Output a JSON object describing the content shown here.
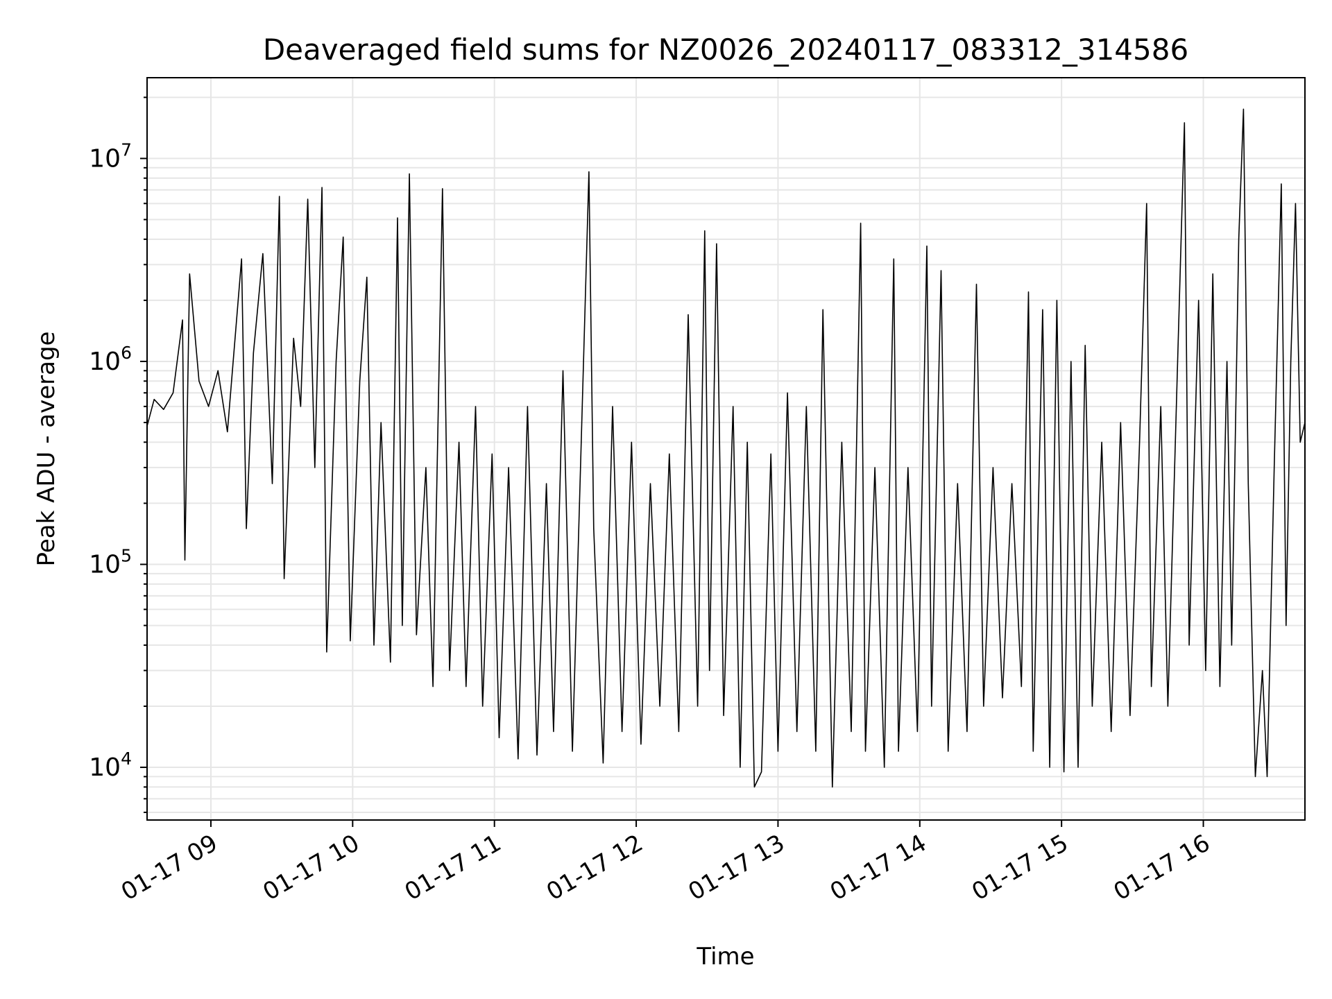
{
  "chart_data": {
    "type": "line",
    "title": "Deaveraged field sums for NZ0026_20240117_083312_314586",
    "xlabel": "Time",
    "ylabel": "Peak ADU - average",
    "yscale": "log",
    "ylim": [
      5500,
      25000000
    ],
    "xlim": [
      "2024-01-17 08:33",
      "2024-01-17 16:43"
    ],
    "grid": true,
    "line_color": "#000000",
    "grid_color": "#e6e6e6",
    "x_ticks": [
      {
        "value": "2024-01-17 09:00",
        "label": "01-17 09"
      },
      {
        "value": "2024-01-17 10:00",
        "label": "01-17 10"
      },
      {
        "value": "2024-01-17 11:00",
        "label": "01-17 11"
      },
      {
        "value": "2024-01-17 12:00",
        "label": "01-17 12"
      },
      {
        "value": "2024-01-17 13:00",
        "label": "01-17 13"
      },
      {
        "value": "2024-01-17 14:00",
        "label": "01-17 14"
      },
      {
        "value": "2024-01-17 15:00",
        "label": "01-17 15"
      },
      {
        "value": "2024-01-17 16:00",
        "label": "01-17 16"
      }
    ],
    "y_ticks": [
      {
        "value": 10000,
        "base": "10",
        "exp": "4"
      },
      {
        "value": 100000,
        "base": "10",
        "exp": "5"
      },
      {
        "value": 1000000,
        "base": "10",
        "exp": "6"
      },
      {
        "value": 10000000,
        "base": "10",
        "exp": "7"
      }
    ],
    "series": [
      {
        "points": [
          [
            "2024-01-17 08:33",
            480000
          ],
          [
            "2024-01-17 08:36",
            650000
          ],
          [
            "2024-01-17 08:40",
            580000
          ],
          [
            "2024-01-17 08:44",
            700000
          ],
          [
            "2024-01-17 08:48",
            1600000
          ],
          [
            "2024-01-17 08:49",
            105000
          ],
          [
            "2024-01-17 08:51",
            2700000
          ],
          [
            "2024-01-17 08:55",
            800000
          ],
          [
            "2024-01-17 08:59",
            600000
          ],
          [
            "2024-01-17 09:03",
            900000
          ],
          [
            "2024-01-17 09:07",
            450000
          ],
          [
            "2024-01-17 09:10",
            1200000
          ],
          [
            "2024-01-17 09:13",
            3200000
          ],
          [
            "2024-01-17 09:15",
            150000
          ],
          [
            "2024-01-17 09:18",
            1100000
          ],
          [
            "2024-01-17 09:22",
            3400000
          ],
          [
            "2024-01-17 09:26",
            250000
          ],
          [
            "2024-01-17 09:29",
            6500000
          ],
          [
            "2024-01-17 09:31",
            85000
          ],
          [
            "2024-01-17 09:35",
            1300000
          ],
          [
            "2024-01-17 09:38",
            600000
          ],
          [
            "2024-01-17 09:41",
            6300000
          ],
          [
            "2024-01-17 09:44",
            300000
          ],
          [
            "2024-01-17 09:47",
            7200000
          ],
          [
            "2024-01-17 09:49",
            37000
          ],
          [
            "2024-01-17 09:53",
            1000000
          ],
          [
            "2024-01-17 09:56",
            4100000
          ],
          [
            "2024-01-17 09:59",
            42000
          ],
          [
            "2024-01-17 10:03",
            800000
          ],
          [
            "2024-01-17 10:06",
            2600000
          ],
          [
            "2024-01-17 10:09",
            40000
          ],
          [
            "2024-01-17 10:12",
            500000
          ],
          [
            "2024-01-17 10:16",
            33000
          ],
          [
            "2024-01-17 10:19",
            5100000
          ],
          [
            "2024-01-17 10:21",
            50000
          ],
          [
            "2024-01-17 10:24",
            8400000
          ],
          [
            "2024-01-17 10:27",
            45000
          ],
          [
            "2024-01-17 10:31",
            300000
          ],
          [
            "2024-01-17 10:34",
            25000
          ],
          [
            "2024-01-17 10:38",
            7100000
          ],
          [
            "2024-01-17 10:41",
            30000
          ],
          [
            "2024-01-17 10:45",
            400000
          ],
          [
            "2024-01-17 10:48",
            25000
          ],
          [
            "2024-01-17 10:52",
            600000
          ],
          [
            "2024-01-17 10:55",
            20000
          ],
          [
            "2024-01-17 10:59",
            350000
          ],
          [
            "2024-01-17 11:02",
            14000
          ],
          [
            "2024-01-17 11:06",
            300000
          ],
          [
            "2024-01-17 11:10",
            11000
          ],
          [
            "2024-01-17 11:14",
            600000
          ],
          [
            "2024-01-17 11:18",
            11500
          ],
          [
            "2024-01-17 11:22",
            250000
          ],
          [
            "2024-01-17 11:25",
            15000
          ],
          [
            "2024-01-17 11:29",
            900000
          ],
          [
            "2024-01-17 11:33",
            12000
          ],
          [
            "2024-01-17 11:36",
            200000
          ],
          [
            "2024-01-17 11:40",
            8600000
          ],
          [
            "2024-01-17 11:42",
            150000
          ],
          [
            "2024-01-17 11:46",
            10500
          ],
          [
            "2024-01-17 11:50",
            600000
          ],
          [
            "2024-01-17 11:54",
            15000
          ],
          [
            "2024-01-17 11:58",
            400000
          ],
          [
            "2024-01-17 12:02",
            13000
          ],
          [
            "2024-01-17 12:06",
            250000
          ],
          [
            "2024-01-17 12:10",
            20000
          ],
          [
            "2024-01-17 12:14",
            350000
          ],
          [
            "2024-01-17 12:18",
            15000
          ],
          [
            "2024-01-17 12:22",
            1700000
          ],
          [
            "2024-01-17 12:26",
            20000
          ],
          [
            "2024-01-17 12:29",
            4400000
          ],
          [
            "2024-01-17 12:31",
            30000
          ],
          [
            "2024-01-17 12:34",
            3800000
          ],
          [
            "2024-01-17 12:37",
            18000
          ],
          [
            "2024-01-17 12:41",
            600000
          ],
          [
            "2024-01-17 12:44",
            10000
          ],
          [
            "2024-01-17 12:47",
            400000
          ],
          [
            "2024-01-17 12:50",
            8000
          ],
          [
            "2024-01-17 12:53",
            9500
          ],
          [
            "2024-01-17 12:57",
            350000
          ],
          [
            "2024-01-17 13:00",
            12000
          ],
          [
            "2024-01-17 13:04",
            700000
          ],
          [
            "2024-01-17 13:08",
            15000
          ],
          [
            "2024-01-17 13:12",
            600000
          ],
          [
            "2024-01-17 13:16",
            12000
          ],
          [
            "2024-01-17 13:19",
            1800000
          ],
          [
            "2024-01-17 13:23",
            8000
          ],
          [
            "2024-01-17 13:27",
            400000
          ],
          [
            "2024-01-17 13:31",
            15000
          ],
          [
            "2024-01-17 13:35",
            4800000
          ],
          [
            "2024-01-17 13:37",
            12000
          ],
          [
            "2024-01-17 13:41",
            300000
          ],
          [
            "2024-01-17 13:45",
            10000
          ],
          [
            "2024-01-17 13:49",
            3200000
          ],
          [
            "2024-01-17 13:51",
            12000
          ],
          [
            "2024-01-17 13:55",
            300000
          ],
          [
            "2024-01-17 13:59",
            15000
          ],
          [
            "2024-01-17 14:03",
            3700000
          ],
          [
            "2024-01-17 14:05",
            20000
          ],
          [
            "2024-01-17 14:09",
            2800000
          ],
          [
            "2024-01-17 14:12",
            12000
          ],
          [
            "2024-01-17 14:16",
            250000
          ],
          [
            "2024-01-17 14:20",
            15000
          ],
          [
            "2024-01-17 14:24",
            2400000
          ],
          [
            "2024-01-17 14:27",
            20000
          ],
          [
            "2024-01-17 14:31",
            300000
          ],
          [
            "2024-01-17 14:35",
            22000
          ],
          [
            "2024-01-17 14:39",
            250000
          ],
          [
            "2024-01-17 14:43",
            25000
          ],
          [
            "2024-01-17 14:46",
            2200000
          ],
          [
            "2024-01-17 14:48",
            12000
          ],
          [
            "2024-01-17 14:52",
            1800000
          ],
          [
            "2024-01-17 14:55",
            10000
          ],
          [
            "2024-01-17 14:58",
            2000000
          ],
          [
            "2024-01-17 15:01",
            9500
          ],
          [
            "2024-01-17 15:04",
            1000000
          ],
          [
            "2024-01-17 15:07",
            10000
          ],
          [
            "2024-01-17 15:10",
            1200000
          ],
          [
            "2024-01-17 15:13",
            20000
          ],
          [
            "2024-01-17 15:17",
            400000
          ],
          [
            "2024-01-17 15:21",
            15000
          ],
          [
            "2024-01-17 15:25",
            500000
          ],
          [
            "2024-01-17 15:29",
            18000
          ],
          [
            "2024-01-17 15:33",
            400000
          ],
          [
            "2024-01-17 15:36",
            6000000
          ],
          [
            "2024-01-17 15:38",
            25000
          ],
          [
            "2024-01-17 15:42",
            600000
          ],
          [
            "2024-01-17 15:45",
            20000
          ],
          [
            "2024-01-17 15:49",
            900000
          ],
          [
            "2024-01-17 15:52",
            15000000
          ],
          [
            "2024-01-17 15:54",
            40000
          ],
          [
            "2024-01-17 15:58",
            2000000
          ],
          [
            "2024-01-17 16:01",
            30000
          ],
          [
            "2024-01-17 16:04",
            2700000
          ],
          [
            "2024-01-17 16:07",
            25000
          ],
          [
            "2024-01-17 16:10",
            1000000
          ],
          [
            "2024-01-17 16:12",
            40000
          ],
          [
            "2024-01-17 16:15",
            4000000
          ],
          [
            "2024-01-17 16:17",
            17500000
          ],
          [
            "2024-01-17 16:19",
            250000
          ],
          [
            "2024-01-17 16:22",
            9000
          ],
          [
            "2024-01-17 16:25",
            30000
          ],
          [
            "2024-01-17 16:27",
            9000
          ],
          [
            "2024-01-17 16:30",
            300000
          ],
          [
            "2024-01-17 16:33",
            7500000
          ],
          [
            "2024-01-17 16:35",
            50000
          ],
          [
            "2024-01-17 16:37",
            1000000
          ],
          [
            "2024-01-17 16:39",
            6000000
          ],
          [
            "2024-01-17 16:41",
            400000
          ],
          [
            "2024-01-17 16:43",
            500000
          ]
        ]
      }
    ]
  }
}
